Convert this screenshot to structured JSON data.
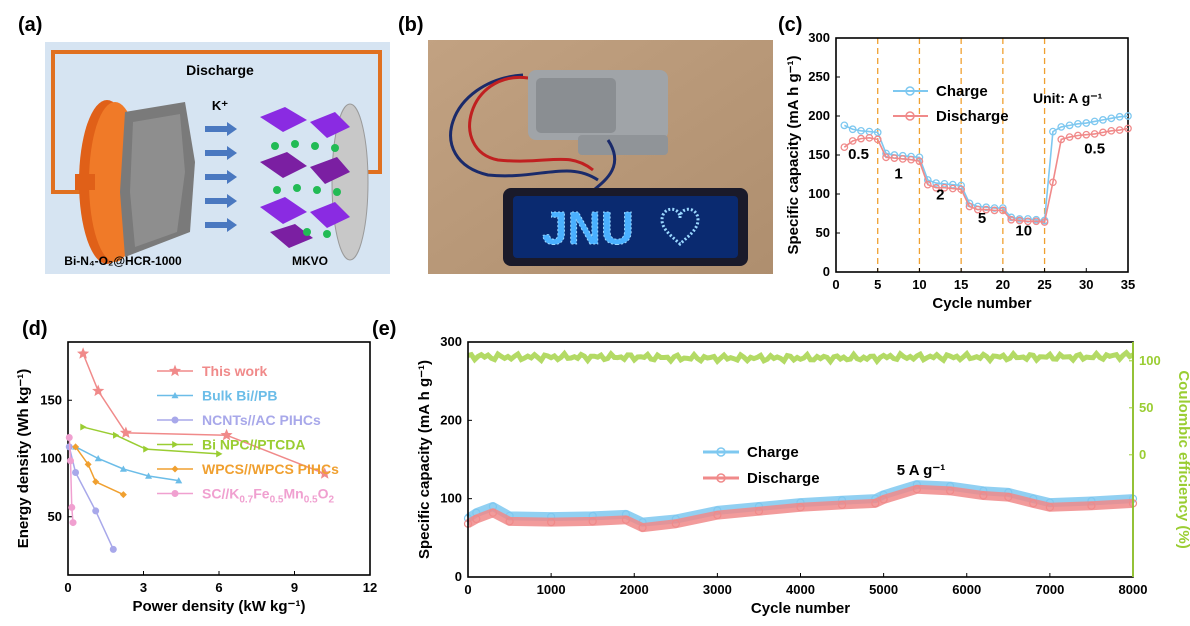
{
  "panels": {
    "a": {
      "label": "(a)",
      "discharge": "Discharge",
      "ion": "K⁺",
      "anode": "Bi-N₄-O₂@HCR-1000",
      "cathode": "MKVO"
    },
    "b": {
      "label": "(b)",
      "led_text": "JNU"
    },
    "c": {
      "label": "(c)"
    },
    "d": {
      "label": "(d)"
    },
    "e": {
      "label": "(e)"
    }
  },
  "colors": {
    "charge": "#7ec8f0",
    "discharge": "#f08a8a",
    "ce": "#9acd32",
    "dash": "#f0a030"
  },
  "chart_data": [
    {
      "id": "c",
      "type": "line",
      "xlabel": "Cycle number",
      "ylabel": "Specific capacity (mA h g⁻¹)",
      "xlim": [
        0,
        35
      ],
      "ylim": [
        0,
        300
      ],
      "xticks": [
        0,
        5,
        10,
        15,
        20,
        25,
        30,
        35
      ],
      "yticks": [
        0,
        50,
        100,
        150,
        200,
        250,
        300
      ],
      "dividers": [
        5,
        10,
        15,
        20,
        25
      ],
      "unit_note": "Unit: A g⁻¹",
      "rate_labels": [
        {
          "text": "0.5",
          "x": 2.7,
          "y": 145
        },
        {
          "text": "1",
          "x": 7.5,
          "y": 120
        },
        {
          "text": "2",
          "x": 12.5,
          "y": 93
        },
        {
          "text": "5",
          "x": 17.5,
          "y": 63
        },
        {
          "text": "10",
          "x": 22.5,
          "y": 47
        },
        {
          "text": "0.5",
          "x": 31,
          "y": 152
        }
      ],
      "x": [
        1,
        2,
        3,
        4,
        5,
        6,
        7,
        8,
        9,
        10,
        11,
        12,
        13,
        14,
        15,
        16,
        17,
        18,
        19,
        20,
        21,
        22,
        23,
        24,
        25,
        26,
        27,
        28,
        29,
        30,
        31,
        32,
        33,
        34,
        35
      ],
      "series": [
        {
          "name": "Charge",
          "values": [
            188,
            183,
            181,
            180,
            179,
            152,
            150,
            149,
            148,
            147,
            118,
            114,
            113,
            112,
            111,
            88,
            84,
            83,
            82,
            82,
            70,
            68,
            68,
            67,
            66,
            180,
            186,
            188,
            190,
            191,
            193,
            195,
            197,
            199,
            200
          ]
        },
        {
          "name": "Discharge",
          "values": [
            160,
            168,
            171,
            172,
            170,
            147,
            146,
            145,
            144,
            142,
            112,
            108,
            108,
            107,
            106,
            84,
            80,
            80,
            79,
            79,
            67,
            66,
            65,
            65,
            64,
            115,
            170,
            173,
            175,
            176,
            177,
            179,
            181,
            182,
            184
          ]
        }
      ]
    },
    {
      "id": "d",
      "type": "line",
      "xlabel": "Power density (kW kg⁻¹)",
      "ylabel": "Energy density (Wh kg⁻¹)",
      "xlim": [
        0,
        12
      ],
      "ylim": [
        0,
        200
      ],
      "xticks": [
        0,
        3,
        6,
        9,
        12
      ],
      "yticks": [
        50,
        100,
        150
      ],
      "series": [
        {
          "name": "This work",
          "color": "#f08a8a",
          "marker": "star",
          "x": [
            0.6,
            1.2,
            2.3,
            6.3,
            10.2
          ],
          "y": [
            190,
            158,
            122,
            120,
            87
          ]
        },
        {
          "name": "Bulk Bi//PB",
          "color": "#6cbde8",
          "marker": "triangle",
          "x": [
            0.3,
            1.2,
            2.2,
            3.2,
            4.4
          ],
          "y": [
            110,
            100,
            91,
            85,
            81
          ]
        },
        {
          "name": "NCNTs//AC PIHCs",
          "color": "#a8a8ea",
          "marker": "circle",
          "x": [
            0.05,
            0.3,
            1.1,
            1.8
          ],
          "y": [
            110,
            88,
            55,
            22
          ]
        },
        {
          "name": "Bi NPC//PTCDA",
          "color": "#9acd32",
          "marker": "triangle-right",
          "x": [
            0.6,
            1.9,
            3.1,
            6.0
          ],
          "y": [
            127,
            120,
            108,
            104
          ]
        },
        {
          "name": "WPCS//WPCS PIHCs",
          "color": "#f0a030",
          "marker": "diamond",
          "x": [
            0.3,
            0.8,
            1.1,
            2.2
          ],
          "y": [
            110,
            95,
            80,
            69
          ]
        },
        {
          "name": "SC//K0.7Fe0.5Mn0.5O2",
          "color": "#f0a0d0",
          "marker": "circle",
          "x": [
            0.05,
            0.1,
            0.15,
            0.2
          ],
          "y": [
            118,
            98,
            58,
            45
          ]
        }
      ],
      "legend_sc": {
        "prefix": "SC//K",
        "sub1": "0.7",
        "mid1": "Fe",
        "sub2": "0.5",
        "mid2": "Mn",
        "sub3": "0.5",
        "mid3": "O",
        "sub4": "2"
      }
    },
    {
      "id": "e",
      "type": "line",
      "xlabel": "Cycle number",
      "ylabel": "Specific capacity (mA h g⁻¹)",
      "y2label": "Coulombic efficiency (%)",
      "xlim": [
        0,
        8000
      ],
      "ylim": [
        0,
        300
      ],
      "y2lim": [
        -130,
        120
      ],
      "xticks": [
        0,
        1000,
        2000,
        3000,
        4000,
        5000,
        6000,
        7000,
        8000
      ],
      "yticks": [
        0,
        100,
        200,
        300
      ],
      "y2ticks": [
        0,
        50,
        100
      ],
      "rate_note": "5 A g⁻¹",
      "x": [
        0,
        100,
        300,
        500,
        1000,
        1500,
        1900,
        2100,
        2500,
        3000,
        3500,
        4000,
        4500,
        4900,
        5000,
        5400,
        5800,
        6200,
        6500,
        6800,
        7000,
        7500,
        8000
      ],
      "series": [
        {
          "name": "Charge",
          "values": [
            75,
            82,
            90,
            78,
            77,
            78,
            80,
            70,
            74,
            85,
            90,
            95,
            98,
            100,
            105,
            118,
            116,
            110,
            108,
            100,
            95,
            97,
            100
          ]
        },
        {
          "name": "Discharge",
          "values": [
            68,
            74,
            82,
            71,
            70,
            71,
            73,
            63,
            68,
            79,
            84,
            89,
            92,
            94,
            99,
            112,
            110,
            104,
            102,
            94,
            89,
            91,
            94
          ]
        },
        {
          "name": "Coulombic efficiency",
          "values": [
            104,
            105,
            104,
            104,
            104,
            104,
            104,
            104,
            103,
            103,
            103,
            103,
            103,
            103,
            104,
            104,
            104,
            104,
            104,
            104,
            104,
            104,
            106
          ]
        }
      ]
    }
  ]
}
